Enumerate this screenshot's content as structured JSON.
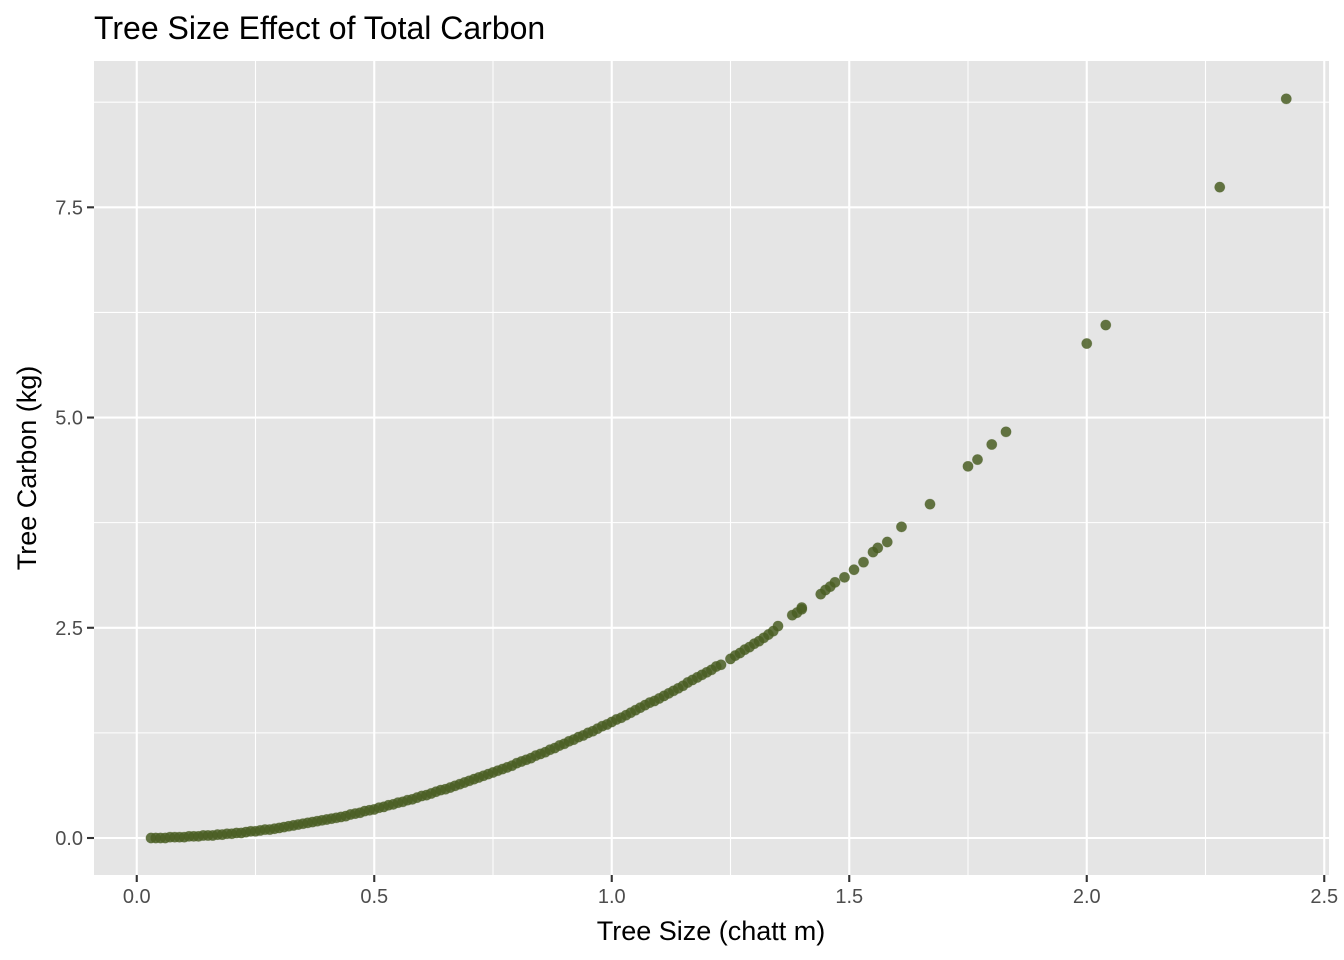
{
  "chart_data": {
    "type": "scatter",
    "title": "Tree Size Effect of Total Carbon",
    "xlabel": "Tree Size (chatt m)",
    "ylabel": "Tree Carbon (kg)",
    "xlim": [
      -0.09,
      2.51
    ],
    "ylim": [
      -0.44,
      9.24
    ],
    "x_ticks": [
      0.0,
      0.5,
      1.0,
      1.5,
      2.0,
      2.5
    ],
    "x_tick_labels": [
      "0.0",
      "0.5",
      "1.0",
      "1.5",
      "2.0",
      "2.5"
    ],
    "y_ticks": [
      0.0,
      2.5,
      5.0,
      7.5
    ],
    "y_tick_labels": [
      "0.0",
      "2.5",
      "5.0",
      "7.5"
    ],
    "grid": true,
    "point_color": "#4a5e23",
    "point_alpha": 0.85,
    "panel_background": "#e5e5e5",
    "series": [
      {
        "points": [
          [
            0.03,
            0.0
          ],
          [
            0.04,
            0.0
          ],
          [
            0.05,
            0.0
          ],
          [
            0.06,
            0.0
          ],
          [
            0.07,
            0.01
          ],
          [
            0.08,
            0.01
          ],
          [
            0.09,
            0.01
          ],
          [
            0.1,
            0.01
          ],
          [
            0.11,
            0.02
          ],
          [
            0.12,
            0.02
          ],
          [
            0.13,
            0.02
          ],
          [
            0.14,
            0.03
          ],
          [
            0.15,
            0.03
          ],
          [
            0.16,
            0.03
          ],
          [
            0.17,
            0.04
          ],
          [
            0.18,
            0.04
          ],
          [
            0.19,
            0.05
          ],
          [
            0.2,
            0.05
          ],
          [
            0.21,
            0.06
          ],
          [
            0.22,
            0.06
          ],
          [
            0.23,
            0.07
          ],
          [
            0.24,
            0.08
          ],
          [
            0.25,
            0.08
          ],
          [
            0.26,
            0.09
          ],
          [
            0.27,
            0.1
          ],
          [
            0.28,
            0.1
          ],
          [
            0.29,
            0.11
          ],
          [
            0.3,
            0.12
          ],
          [
            0.31,
            0.13
          ],
          [
            0.32,
            0.14
          ],
          [
            0.33,
            0.15
          ],
          [
            0.34,
            0.16
          ],
          [
            0.35,
            0.17
          ],
          [
            0.36,
            0.18
          ],
          [
            0.37,
            0.19
          ],
          [
            0.38,
            0.2
          ],
          [
            0.39,
            0.21
          ],
          [
            0.4,
            0.22
          ],
          [
            0.41,
            0.23
          ],
          [
            0.42,
            0.24
          ],
          [
            0.43,
            0.25
          ],
          [
            0.44,
            0.26
          ],
          [
            0.45,
            0.28
          ],
          [
            0.46,
            0.29
          ],
          [
            0.47,
            0.3
          ],
          [
            0.48,
            0.32
          ],
          [
            0.49,
            0.33
          ],
          [
            0.5,
            0.34
          ],
          [
            0.51,
            0.36
          ],
          [
            0.52,
            0.37
          ],
          [
            0.53,
            0.39
          ],
          [
            0.54,
            0.4
          ],
          [
            0.55,
            0.42
          ],
          [
            0.56,
            0.43
          ],
          [
            0.57,
            0.45
          ],
          [
            0.58,
            0.46
          ],
          [
            0.59,
            0.48
          ],
          [
            0.6,
            0.5
          ],
          [
            0.61,
            0.51
          ],
          [
            0.62,
            0.53
          ],
          [
            0.63,
            0.55
          ],
          [
            0.64,
            0.57
          ],
          [
            0.65,
            0.58
          ],
          [
            0.66,
            0.6
          ],
          [
            0.67,
            0.62
          ],
          [
            0.68,
            0.64
          ],
          [
            0.69,
            0.66
          ],
          [
            0.7,
            0.68
          ],
          [
            0.71,
            0.7
          ],
          [
            0.72,
            0.72
          ],
          [
            0.73,
            0.74
          ],
          [
            0.74,
            0.76
          ],
          [
            0.75,
            0.78
          ],
          [
            0.76,
            0.8
          ],
          [
            0.77,
            0.82
          ],
          [
            0.78,
            0.84
          ],
          [
            0.79,
            0.86
          ],
          [
            0.8,
            0.89
          ],
          [
            0.81,
            0.91
          ],
          [
            0.82,
            0.93
          ],
          [
            0.83,
            0.95
          ],
          [
            0.84,
            0.98
          ],
          [
            0.85,
            1.0
          ],
          [
            0.86,
            1.02
          ],
          [
            0.87,
            1.05
          ],
          [
            0.88,
            1.07
          ],
          [
            0.89,
            1.1
          ],
          [
            0.9,
            1.12
          ],
          [
            0.91,
            1.15
          ],
          [
            0.92,
            1.17
          ],
          [
            0.93,
            1.2
          ],
          [
            0.94,
            1.22
          ],
          [
            0.95,
            1.25
          ],
          [
            0.96,
            1.27
          ],
          [
            0.97,
            1.3
          ],
          [
            0.98,
            1.33
          ],
          [
            0.99,
            1.35
          ],
          [
            1.0,
            1.38
          ],
          [
            1.01,
            1.41
          ],
          [
            1.02,
            1.43
          ],
          [
            1.03,
            1.46
          ],
          [
            1.04,
            1.49
          ],
          [
            1.05,
            1.52
          ],
          [
            1.06,
            1.55
          ],
          [
            1.07,
            1.58
          ],
          [
            1.08,
            1.61
          ],
          [
            1.09,
            1.63
          ],
          [
            1.1,
            1.66
          ],
          [
            1.11,
            1.69
          ],
          [
            1.12,
            1.72
          ],
          [
            1.13,
            1.75
          ],
          [
            1.14,
            1.78
          ],
          [
            1.15,
            1.81
          ],
          [
            1.16,
            1.85
          ],
          [
            1.17,
            1.88
          ],
          [
            1.18,
            1.91
          ],
          [
            1.19,
            1.94
          ],
          [
            1.2,
            1.97
          ],
          [
            1.21,
            2.0
          ],
          [
            1.22,
            2.04
          ],
          [
            1.23,
            2.06
          ],
          [
            1.25,
            2.13
          ],
          [
            1.26,
            2.17
          ],
          [
            1.27,
            2.2
          ],
          [
            1.28,
            2.24
          ],
          [
            1.29,
            2.27
          ],
          [
            1.3,
            2.31
          ],
          [
            1.31,
            2.34
          ],
          [
            1.32,
            2.38
          ],
          [
            1.33,
            2.42
          ],
          [
            1.34,
            2.46
          ],
          [
            1.35,
            2.52
          ],
          [
            1.38,
            2.65
          ],
          [
            1.39,
            2.68
          ],
          [
            1.4,
            2.72
          ],
          [
            1.4,
            2.74
          ],
          [
            1.44,
            2.9
          ],
          [
            1.45,
            2.95
          ],
          [
            1.46,
            2.99
          ],
          [
            1.47,
            3.04
          ],
          [
            1.49,
            3.1
          ],
          [
            1.51,
            3.19
          ],
          [
            1.53,
            3.28
          ],
          [
            1.55,
            3.4
          ],
          [
            1.56,
            3.45
          ],
          [
            1.58,
            3.52
          ],
          [
            1.61,
            3.7
          ],
          [
            1.67,
            3.97
          ],
          [
            1.75,
            4.42
          ],
          [
            1.77,
            4.5
          ],
          [
            1.8,
            4.68
          ],
          [
            1.83,
            4.83
          ],
          [
            2.0,
            5.88
          ],
          [
            2.04,
            6.1
          ],
          [
            2.28,
            7.74
          ],
          [
            2.42,
            8.79
          ]
        ]
      }
    ]
  }
}
